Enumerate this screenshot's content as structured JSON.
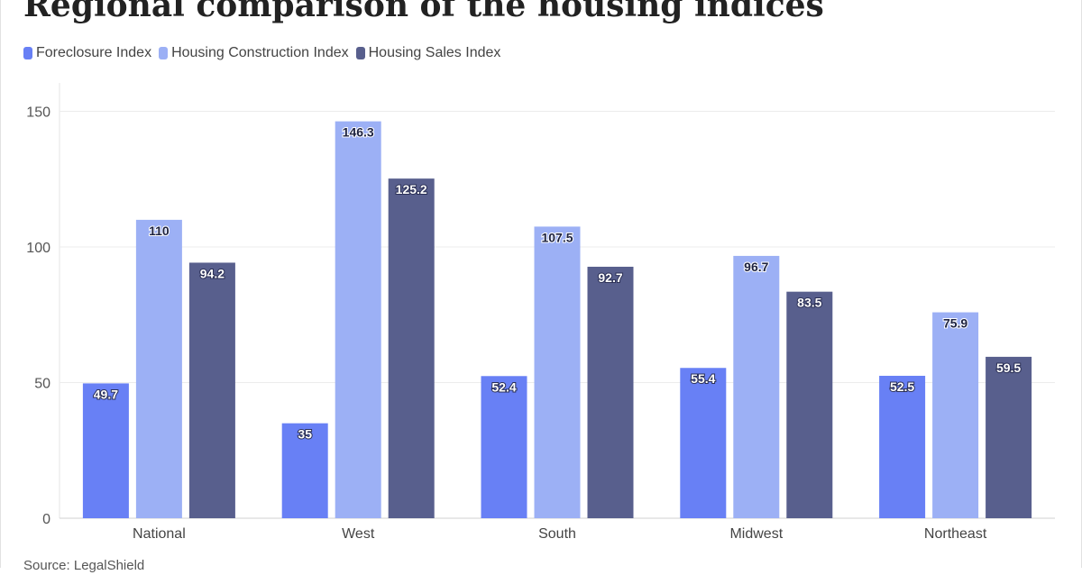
{
  "title": "Regional comparison of the housing indices",
  "source": "Source: LegalShield",
  "chart_data": {
    "type": "bar",
    "title": "Regional comparison of the housing indices",
    "xlabel": "",
    "ylabel": "",
    "categories": [
      "National",
      "West",
      "South",
      "Midwest",
      "Northeast"
    ],
    "ylim": [
      0,
      150
    ],
    "yticks": [
      "0",
      "50",
      "100",
      "150"
    ],
    "grid": true,
    "legend_position": "top-left",
    "series": [
      {
        "name": "Foreclosure Index",
        "color": "#6880f5",
        "values": [
          49.7,
          35,
          52.4,
          55.4,
          52.5
        ],
        "labels": [
          "49.7",
          "35",
          "52.4",
          "55.4",
          "52.5"
        ]
      },
      {
        "name": "Housing Construction Index",
        "color": "#9cb0f5",
        "values": [
          110,
          146.3,
          107.5,
          96.7,
          75.9
        ],
        "labels": [
          "110",
          "146.3",
          "107.5",
          "96.7",
          "75.9"
        ]
      },
      {
        "name": "Housing Sales Index",
        "color": "#585f8d",
        "values": [
          94.2,
          125.2,
          92.7,
          83.5,
          59.5
        ],
        "labels": [
          "94.2",
          "125.2",
          "92.7",
          "83.5",
          "59.5"
        ]
      }
    ]
  }
}
